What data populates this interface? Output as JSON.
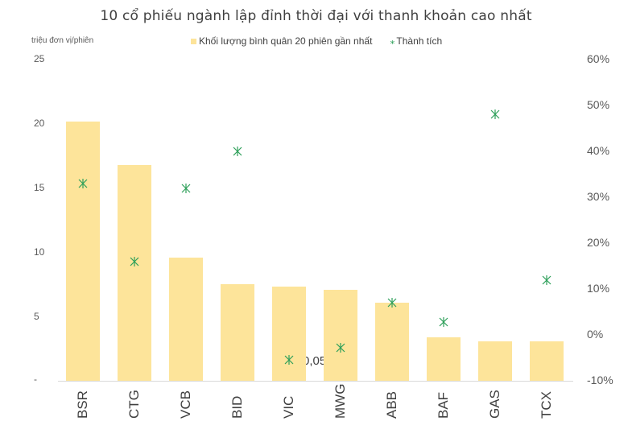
{
  "chart_data": {
    "type": "bar+scatter",
    "title": "10 cổ phiếu ngành lập đỉnh thời đại với thanh khoản cao nhất",
    "ylabel_left": "triệu đơn vị/phiên",
    "categories": [
      "BSR",
      "CTG",
      "VCB",
      "BID",
      "VIC",
      "MWG",
      "ABB",
      "BAF",
      "GAS",
      "TCX"
    ],
    "series": [
      {
        "name": "Khối lượng bình quân 20 phiên gần nhất",
        "type": "bar",
        "axis": "left",
        "color": "#FDE49A",
        "values": [
          20.2,
          16.8,
          9.6,
          7.5,
          7.3,
          7.1,
          6.1,
          3.4,
          3.1,
          3.1
        ]
      },
      {
        "name": "Thành tích",
        "type": "scatter",
        "axis": "right",
        "color": "#2EA05A",
        "marker": "star",
        "values": [
          0.33,
          0.16,
          0.32,
          0.4,
          -0.055,
          -0.028,
          0.07,
          0.028,
          0.48,
          0.12
        ]
      }
    ],
    "left_axis": {
      "ticks": [
        "-",
        "5",
        "10",
        "15",
        "20",
        "25"
      ],
      "ylim": [
        0,
        25
      ]
    },
    "right_axis": {
      "ticks": [
        "-10%",
        "0%",
        "10%",
        "20%",
        "30%",
        "40%",
        "50%",
        "60%"
      ],
      "ylim": [
        -0.1,
        0.6
      ]
    },
    "annotations": [
      {
        "category": "VIC",
        "text": "-0,055"
      }
    ],
    "legend_position": "top",
    "grid": false
  },
  "labels": {
    "title": "10 cổ phiếu ngành lập đỉnh thời đại với thanh khoản cao nhất",
    "unit": "triệu đơn vị/phiên",
    "legend_bar": "Khối lượng bình quân 20 phiên gần nhất",
    "legend_marker": "Thành tích",
    "legend_marker_glyph": "⁎",
    "left_ticks": [
      "25",
      "20",
      "15",
      "10",
      "5",
      "-"
    ],
    "right_ticks": [
      "60%",
      "50%",
      "40%",
      "30%",
      "20%",
      "10%",
      "0%",
      "-10%"
    ],
    "vic_annotation": "-0,055"
  }
}
